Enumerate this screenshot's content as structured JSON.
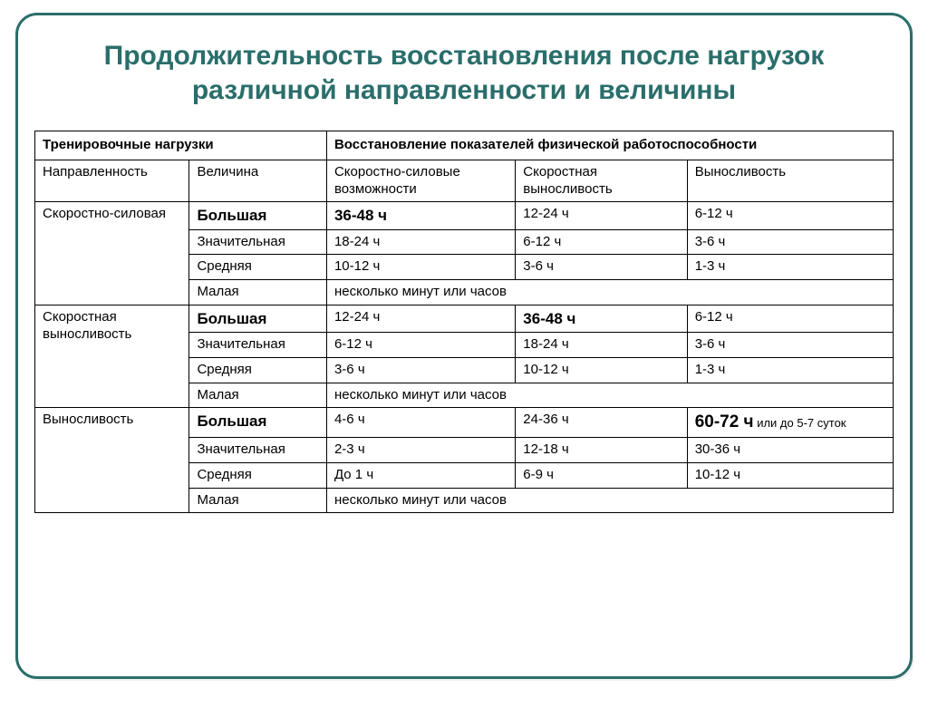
{
  "title": "Продолжительность восстановления после нагрузок различной направленности и величины",
  "colors": {
    "frame_border": "#2a6e6b",
    "title_color": "#2a6e6b",
    "table_border": "#000000",
    "text": "#000000",
    "bg": "#ffffff"
  },
  "table": {
    "top": {
      "left": "Тренировочные нагрузки",
      "right": "Восстановление показателей физической работоспособности"
    },
    "sub": {
      "c1": "Направленность",
      "c2": "Величина",
      "c3": "Скоростно-силовые возможности",
      "c4": "Скоростная выносливость",
      "c5": "Выносливость"
    },
    "groups": [
      {
        "label": "Скоростно-силовая",
        "rows": [
          {
            "mag": "Большая",
            "mag_bold": true,
            "c3": "36-48 ч",
            "c3_bold": true,
            "c4": "12-24 ч",
            "c5": "6-12 ч"
          },
          {
            "mag": "Значительная",
            "c3": "18-24 ч",
            "c4": "6-12 ч",
            "c5": "3-6 ч"
          },
          {
            "mag": "Средняя",
            "c3": "10-12 ч",
            "c4": "3-6 ч",
            "c5": "1-3 ч"
          },
          {
            "mag": "Малая",
            "span": "несколько минут или часов"
          }
        ]
      },
      {
        "label": "Скоростная выносливость",
        "rows": [
          {
            "mag": "Большая",
            "mag_bold": true,
            "c3": "12-24 ч",
            "c4": "36-48 ч",
            "c4_bold": true,
            "c5": "6-12 ч"
          },
          {
            "mag": "Значительная",
            "c3": "6-12 ч",
            "c4": "18-24 ч",
            "c5": "3-6 ч"
          },
          {
            "mag": "Средняя",
            "c3": "3-6 ч",
            "c4": "10-12 ч",
            "c5": "1-3 ч"
          },
          {
            "mag": "Малая",
            "span": "несколько минут или часов"
          }
        ]
      },
      {
        "label": "Выносливость",
        "rows": [
          {
            "mag": "Большая",
            "mag_bold": true,
            "c3": "4-6 ч",
            "c4": "24-36 ч",
            "c5_big": "60-72 ч",
            "c5_sub": " или до 5-7 суток"
          },
          {
            "mag": "Значительная",
            "c3": "2-3 ч",
            "c4": "12-18 ч",
            "c5": "30-36 ч"
          },
          {
            "mag": "Средняя",
            "c3": "До 1 ч",
            "c4": "6-9 ч",
            "c5": "10-12 ч"
          },
          {
            "mag": "Малая",
            "span": "несколько минут или часов"
          }
        ]
      }
    ]
  }
}
